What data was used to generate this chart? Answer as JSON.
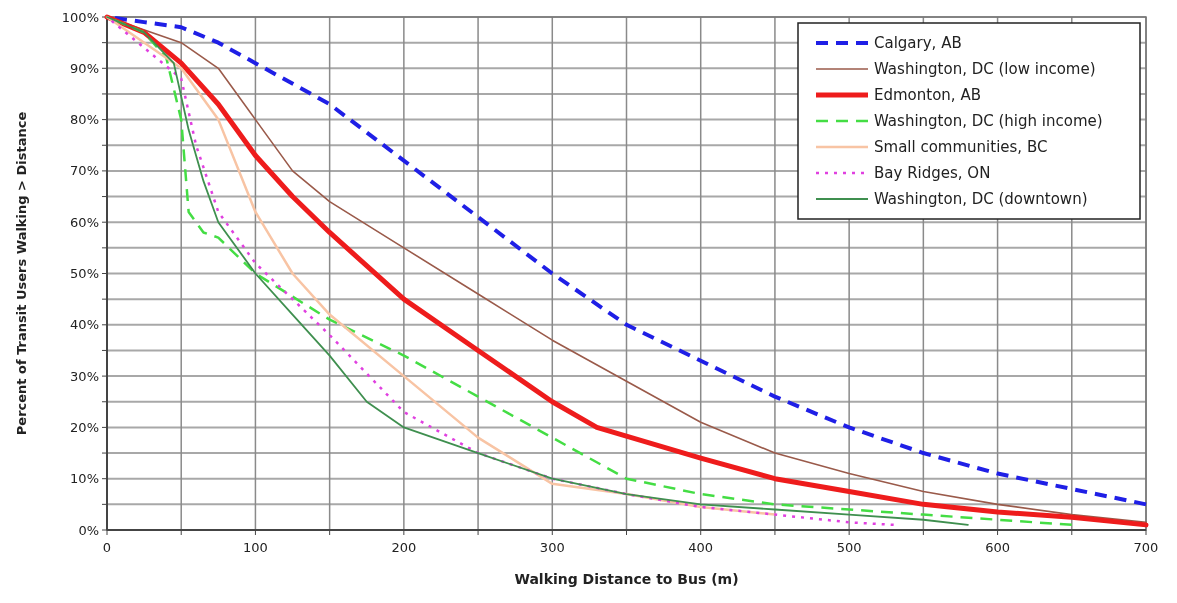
{
  "chart_data": {
    "type": "line",
    "xlabel": "Walking Distance to Bus (m)",
    "ylabel": "Percent of Transit Users Walking > Distance",
    "xlim": [
      0,
      700
    ],
    "ylim": [
      0,
      100
    ],
    "xticks": [
      0,
      {
        "value": 50,
        "label": null
      },
      100,
      {
        "value": 150,
        "label": null
      },
      200,
      {
        "value": 250,
        "label": null
      },
      300,
      {
        "value": 350,
        "label": null
      },
      400,
      {
        "value": 450,
        "label": null
      },
      500,
      {
        "value": 550,
        "label": null
      },
      600,
      {
        "value": 650,
        "label": null
      },
      700
    ],
    "yticks": [
      {
        "value": 0,
        "label": "0%"
      },
      {
        "value": 5,
        "label": null
      },
      {
        "value": 10,
        "label": "10%"
      },
      {
        "value": 15,
        "label": null
      },
      {
        "value": 20,
        "label": "20%"
      },
      {
        "value": 25,
        "label": null
      },
      {
        "value": 30,
        "label": "30%"
      },
      {
        "value": 35,
        "label": null
      },
      {
        "value": 40,
        "label": "40%"
      },
      {
        "value": 45,
        "label": null
      },
      {
        "value": 50,
        "label": "50%"
      },
      {
        "value": 55,
        "label": null
      },
      {
        "value": 60,
        "label": "60%"
      },
      {
        "value": 65,
        "label": null
      },
      {
        "value": 70,
        "label": "70%"
      },
      {
        "value": 75,
        "label": null
      },
      {
        "value": 80,
        "label": "80%"
      },
      {
        "value": 85,
        "label": null
      },
      {
        "value": 90,
        "label": "90%"
      },
      {
        "value": 95,
        "label": null
      },
      {
        "value": 100,
        "label": "100%"
      }
    ],
    "grid": true,
    "legend": "top right",
    "marker": "none",
    "series": [
      {
        "name": "Calgary, AB",
        "color": "#1f1fe6",
        "line_style": "dashed",
        "x": [
          0,
          25,
          50,
          75,
          100,
          150,
          200,
          250,
          300,
          350,
          400,
          450,
          500,
          550,
          600,
          650,
          700
        ],
        "values": [
          100,
          99,
          98,
          95,
          91,
          83,
          72,
          61,
          50,
          40,
          33,
          26,
          20,
          15,
          11,
          8,
          5
        ]
      },
      {
        "name": "Washington, DC (low income)",
        "color": "#9a5a4a",
        "line_style": "solid",
        "x": [
          0,
          50,
          75,
          100,
          125,
          150,
          200,
          250,
          300,
          350,
          400,
          450,
          500,
          550,
          600,
          650,
          700
        ],
        "values": [
          100,
          95,
          90,
          80,
          70,
          64,
          55,
          46,
          37,
          29,
          21,
          15,
          11,
          7.5,
          5,
          3,
          1.5
        ]
      },
      {
        "name": "Edmonton, AB",
        "color": "#ee1c1c",
        "line_style": "solid",
        "x": [
          0,
          25,
          50,
          75,
          100,
          125,
          150,
          200,
          250,
          300,
          330,
          400,
          450,
          500,
          550,
          600,
          650,
          700
        ],
        "values": [
          100,
          97,
          91,
          83,
          73,
          65,
          58,
          45,
          35,
          25,
          20,
          14,
          10,
          7.5,
          5,
          3.5,
          2.5,
          1
        ]
      },
      {
        "name": "Washington, DC (high income)",
        "color": "#44dd44",
        "line_style": "dashed",
        "x": [
          0,
          25,
          40,
          50,
          55,
          65,
          75,
          100,
          150,
          200,
          250,
          300,
          350,
          400,
          450,
          500,
          550,
          600,
          650
        ],
        "values": [
          100,
          97,
          92,
          80,
          62,
          58,
          57,
          50,
          41,
          34,
          26,
          18,
          10,
          7,
          5,
          4,
          3,
          2,
          1
        ]
      },
      {
        "name": "Small communities, BC",
        "color": "#f8c4a4",
        "line_style": "solid",
        "x": [
          0,
          50,
          75,
          100,
          125,
          150,
          200,
          250,
          300,
          350,
          400,
          450
        ],
        "values": [
          100,
          90,
          80,
          62,
          50,
          42,
          30,
          18,
          9,
          7,
          4.5,
          3
        ]
      },
      {
        "name": "Bay Ridges, ON",
        "color": "#e040e0",
        "line_style": "dotted",
        "x": [
          0,
          50,
          60,
          75,
          100,
          150,
          200,
          250,
          300,
          350,
          400,
          450,
          500,
          530
        ],
        "values": [
          100,
          88,
          75,
          62,
          52,
          38,
          23,
          15,
          10,
          7,
          4.5,
          3,
          1.5,
          1
        ]
      },
      {
        "name": "Washington, DC (downtown)",
        "color": "#3f8f4f",
        "line_style": "solid",
        "x": [
          0,
          25,
          45,
          55,
          65,
          75,
          100,
          125,
          150,
          175,
          200,
          250,
          300,
          350,
          400,
          450,
          500,
          550,
          580
        ],
        "values": [
          100,
          97,
          91,
          78,
          68,
          60,
          50,
          42,
          34,
          25,
          20,
          15,
          10,
          7,
          5,
          4,
          3,
          2,
          1
        ]
      }
    ]
  }
}
